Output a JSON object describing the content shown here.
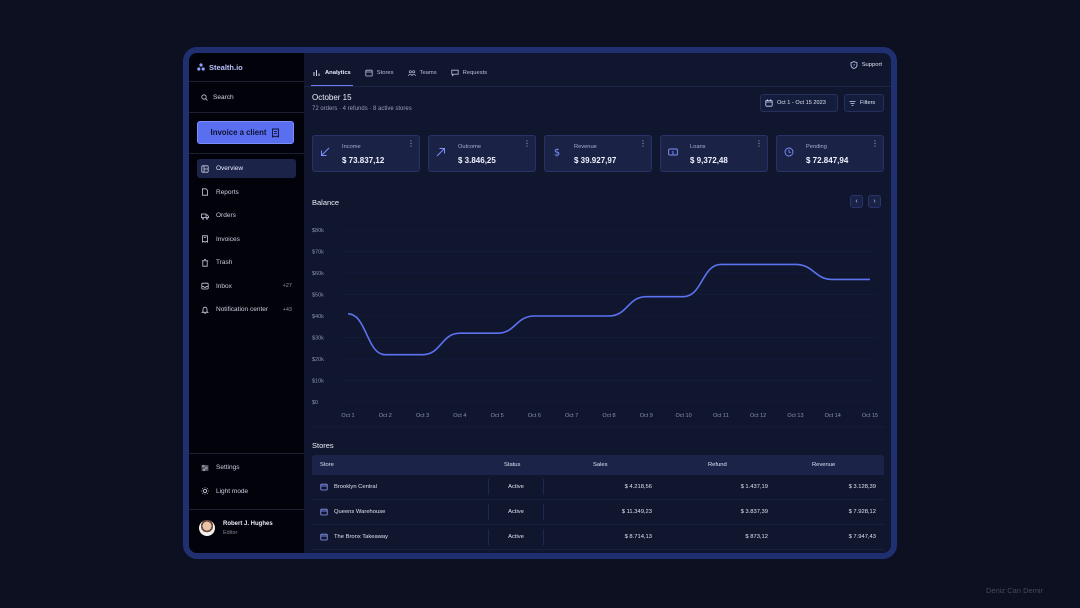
{
  "app": {
    "name": "Stealth.io"
  },
  "sidebar": {
    "search_label": "Search",
    "invoice_button": "Invoice a client",
    "items": [
      {
        "label": "Overview",
        "icon": "overview-icon",
        "active": true
      },
      {
        "label": "Reports",
        "icon": "reports-icon"
      },
      {
        "label": "Orders",
        "icon": "orders-icon"
      },
      {
        "label": "Invoices",
        "icon": "invoices-icon"
      },
      {
        "label": "Trash",
        "icon": "trash-icon"
      },
      {
        "label": "Inbox",
        "icon": "inbox-icon",
        "count": "+27"
      },
      {
        "label": "Notification center",
        "icon": "bell-icon",
        "count": "+43"
      }
    ],
    "bottom_items": [
      {
        "label": "Settings",
        "icon": "settings-icon"
      },
      {
        "label": "Light mode",
        "icon": "sun-icon"
      }
    ],
    "user": {
      "name": "Robert J. Hughes",
      "role": "Editor"
    }
  },
  "header": {
    "tabs": [
      {
        "label": "Analytics",
        "active": true
      },
      {
        "label": "Stores"
      },
      {
        "label": "Teams"
      },
      {
        "label": "Requests"
      }
    ],
    "support": "Support"
  },
  "summary": {
    "date": "October 15",
    "subtitle": "72 orders  ·  4 refunds  ·  8 active stores",
    "date_range": "Oct 1 - Oct 15  2023",
    "filters": "Filters"
  },
  "cards": [
    {
      "label": "Income",
      "value": "$ 73.837,12",
      "icon": "arrow-down-left-icon"
    },
    {
      "label": "Outcome",
      "value": "$ 3.846,25",
      "icon": "arrow-up-right-icon"
    },
    {
      "label": "Revenue",
      "value": "$ 39.927,97",
      "icon": "dollar-icon"
    },
    {
      "label": "Loans",
      "value": "$ 9,372,48",
      "icon": "loan-icon"
    },
    {
      "label": "Pending",
      "value": "$ 72.847,94",
      "icon": "clock-icon"
    }
  ],
  "balance_title": "Balance",
  "chart_data": {
    "type": "line",
    "title": "Balance",
    "x": [
      "Oct 1",
      "Oct 2",
      "Oct 3",
      "Oct 4",
      "Oct 5",
      "Oct 6",
      "Oct 7",
      "Oct 8",
      "Oct 9",
      "Oct 10",
      "Oct 11",
      "Oct 12",
      "Oct 13",
      "Oct 14",
      "Oct 15"
    ],
    "values": [
      41000,
      22000,
      22000,
      32000,
      32000,
      40000,
      40000,
      40000,
      49000,
      49000,
      64000,
      64000,
      64000,
      57000,
      57000
    ],
    "yticks": [
      "$0",
      "$10k",
      "$20k",
      "$30k",
      "$40k",
      "$50k",
      "$60k",
      "$70k",
      "$80k"
    ],
    "ylim": [
      0,
      80000
    ],
    "line_color": "#5c72f0",
    "grid": true
  },
  "stores": {
    "title": "Stores",
    "headers": [
      "Store",
      "Status",
      "Sales",
      "Refund",
      "Revenue"
    ],
    "rows": [
      {
        "store": "Brooklyn Central",
        "status": "Active",
        "sales": "$ 4.218,56",
        "refund": "$ 1.437,19",
        "revenue": "$ 3.128,39"
      },
      {
        "store": "Queens Warehouse",
        "status": "Active",
        "sales": "$ 11.349,23",
        "refund": "$ 3.837,39",
        "revenue": "$ 7.928,12"
      },
      {
        "store": "The Bronx Takeaway",
        "status": "Active",
        "sales": "$ 8.714,13",
        "refund": "$ 873,12",
        "revenue": "$ 7.947,43"
      }
    ]
  },
  "credit": "Deniz Can Demir",
  "colors": {
    "accent": "#5a6ff0",
    "background": "#0c1020",
    "frame": "#1f2f70"
  }
}
